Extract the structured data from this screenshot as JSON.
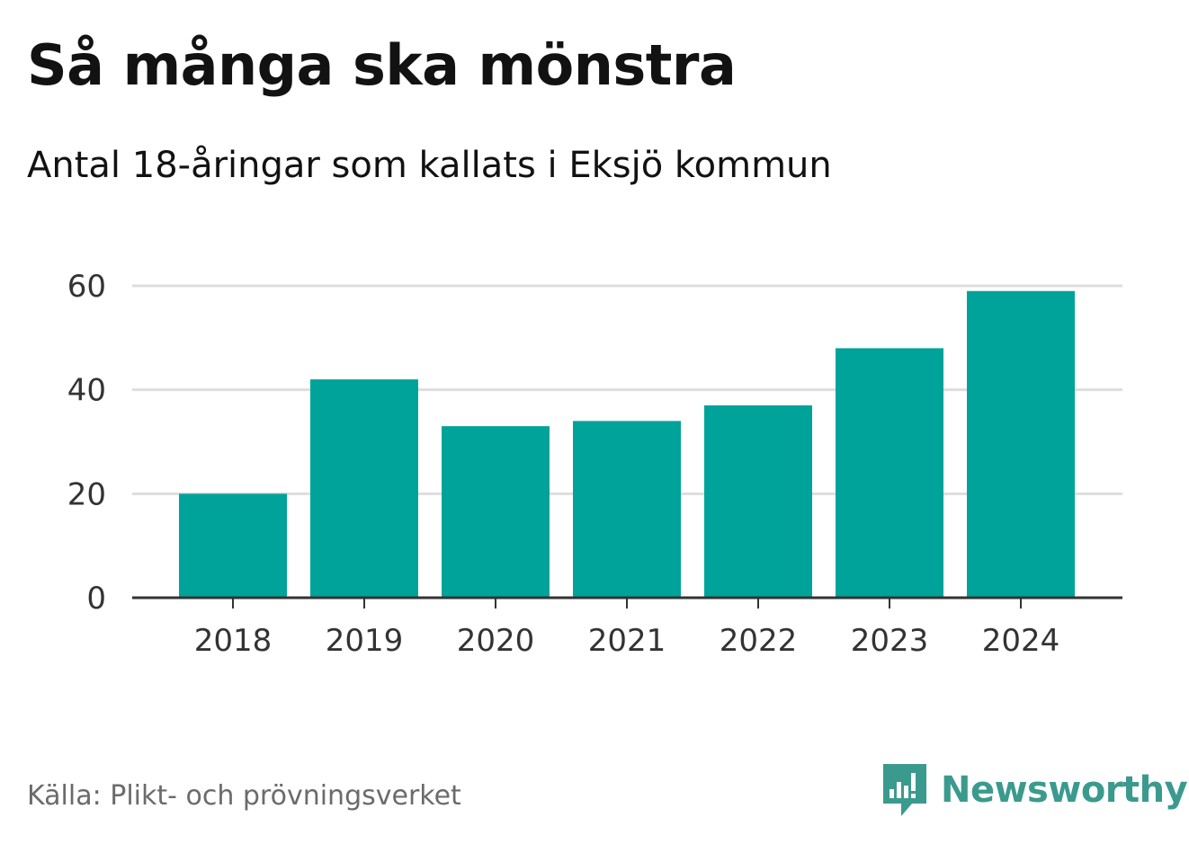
{
  "title": "Så många ska mönstra",
  "subtitle": "Antal 18-åringar som kallats i Eksjö kommun",
  "source": "Källa: Plikt- och prövningsverket",
  "brand": {
    "name": "Newsworthy",
    "icon": "newsworthy-logo-icon",
    "color": "#3b9a8e"
  },
  "chart_data": {
    "type": "bar",
    "categories": [
      "2018",
      "2019",
      "2020",
      "2021",
      "2022",
      "2023",
      "2024"
    ],
    "values": [
      20,
      42,
      33,
      34,
      37,
      48,
      59
    ],
    "title": "Så många ska mönstra",
    "subtitle": "Antal 18-åringar som kallats i Eksjö kommun",
    "ylim": [
      0,
      60
    ],
    "yticks": [
      0,
      20,
      40,
      60
    ],
    "grid": true,
    "legend": "none",
    "bar_color": "#00a39a"
  }
}
